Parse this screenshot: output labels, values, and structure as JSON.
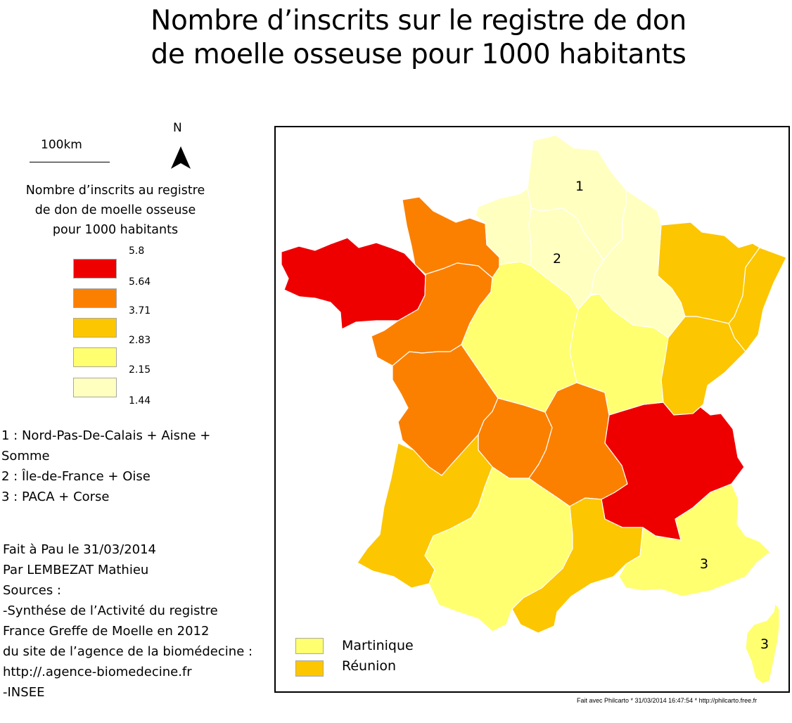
{
  "title": {
    "line1": "Nombre d’inscrits sur le registre de don",
    "line2": "de moelle osseuse pour 1000 habitants"
  },
  "scale_bar": {
    "label": "100km"
  },
  "north_arrow": {
    "label": "N",
    "icon": "north-arrow-icon"
  },
  "legend": {
    "title_lines": [
      "Nombre d’inscrits au registre",
      "de don de moelle osseuse",
      "pour 1000 habitants"
    ],
    "classes": [
      {
        "color": "#ee0000"
      },
      {
        "color": "#fb8000"
      },
      {
        "color": "#fcc600"
      },
      {
        "color": "#ffff70"
      },
      {
        "color": "#ffffc0"
      }
    ],
    "breaks": [
      "5.8",
      "5.64",
      "3.71",
      "2.83",
      "2.15",
      "1.44"
    ]
  },
  "notes": [
    "1 : Nord-Pas-De-Calais + Aisne +",
    "Somme",
    "2 : Île-de-France + Oise",
    "3 : PACA + Corse"
  ],
  "credits": [
    "Fait à Pau le 31/03/2014",
    "Par LEMBEZAT Mathieu",
    "Sources :",
    "-Synthése de l’Activité du registre",
    "France Greffe de Moelle en 2012",
    "du site de l’agence de la biomédecine :",
    "http://.agence-biomedecine.fr",
    "-INSEE"
  ],
  "map": {
    "region_labels": [
      "1",
      "2",
      "3",
      "3"
    ],
    "regions": [
      {
        "name": "bretagne",
        "color": "#ee0000"
      },
      {
        "name": "rhone-alpes",
        "color": "#ee0000"
      },
      {
        "name": "basse-normandie",
        "color": "#fb8000"
      },
      {
        "name": "pays-de-la-loire",
        "color": "#fb8000"
      },
      {
        "name": "poitou-charentes",
        "color": "#fb8000"
      },
      {
        "name": "limousin",
        "color": "#fb8000"
      },
      {
        "name": "auvergne",
        "color": "#fb8000"
      },
      {
        "name": "lorraine",
        "color": "#fcc600"
      },
      {
        "name": "alsace",
        "color": "#fcc600"
      },
      {
        "name": "franche-comte",
        "color": "#fcc600"
      },
      {
        "name": "aquitaine",
        "color": "#fcc600"
      },
      {
        "name": "languedoc-roussillon",
        "color": "#fcc600"
      },
      {
        "name": "centre",
        "color": "#ffff70"
      },
      {
        "name": "bourgogne",
        "color": "#ffff70"
      },
      {
        "name": "midi-pyrenees",
        "color": "#ffff70"
      },
      {
        "name": "paca",
        "color": "#ffff70"
      },
      {
        "name": "corse",
        "color": "#ffff70"
      },
      {
        "name": "nord-picardie",
        "color": "#ffffc0"
      },
      {
        "name": "haute-normandie",
        "color": "#ffffc0"
      },
      {
        "name": "ile-de-france-oise",
        "color": "#ffffc0"
      },
      {
        "name": "champagne-ardenne",
        "color": "#ffffc0"
      }
    ],
    "overseas": [
      {
        "label": "Martinique",
        "color": "#ffff70"
      },
      {
        "label": "Réunion",
        "color": "#fcc600"
      }
    ]
  },
  "footer": "Fait avec Philcarto * 31/03/2014 16:47:54 * http://philcarto.free.fr"
}
